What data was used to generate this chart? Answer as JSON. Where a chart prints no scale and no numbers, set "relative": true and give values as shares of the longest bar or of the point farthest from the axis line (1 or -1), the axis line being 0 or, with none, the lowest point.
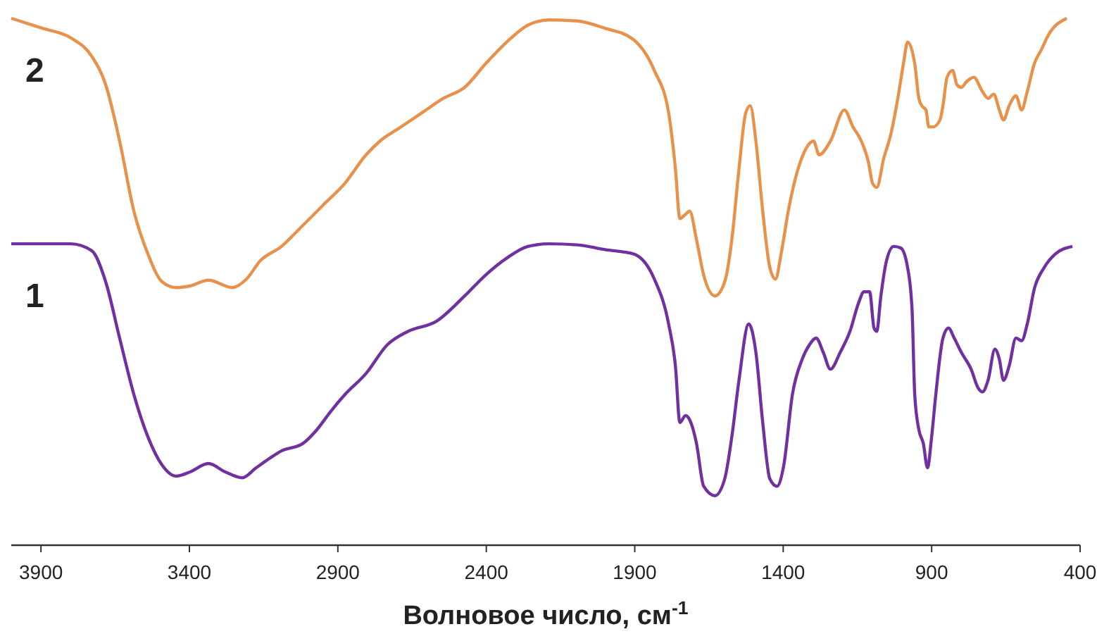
{
  "chart_data": {
    "type": "line",
    "relative": true,
    "xlabel": "Волновое число, см$^{-1}$",
    "xlim": [
      4000,
      400
    ],
    "xticks": [
      3900,
      3400,
      2900,
      2400,
      1900,
      1400,
      900,
      400
    ],
    "grid": false,
    "marker": "none",
    "line_style": "solid",
    "series": [
      {
        "name": "1",
        "color": "#7030a0",
        "x": [
          4000,
          3895,
          3800,
          3729,
          3682,
          3635,
          3587,
          3540,
          3492,
          3445,
          3398,
          3336,
          3279,
          3222,
          3175,
          3127,
          3090,
          3018,
          2971,
          2924,
          2876,
          2805,
          2734,
          2663,
          2568,
          2473,
          2402,
          2331,
          2260,
          2189,
          2094,
          2000,
          1905,
          1834,
          1786,
          1763,
          1748,
          1729,
          1715,
          1692,
          1668,
          1630,
          1597,
          1573,
          1549,
          1516,
          1492,
          1469,
          1445,
          1421,
          1398,
          1369,
          1336,
          1312,
          1289,
          1265,
          1241,
          1208,
          1175,
          1146,
          1128,
          1109,
          1094,
          1085,
          1071,
          1052,
          1028,
          1004,
          981,
          966,
          957,
          943,
          928,
          914,
          900,
          886,
          862,
          843,
          824,
          800,
          767,
          744,
          729,
          710,
          687,
          672,
          658,
          639,
          616,
          597,
          578,
          554,
          521,
          483,
          426
        ],
        "values": [
          0.572,
          0.572,
          0.572,
          0.559,
          0.5,
          0.393,
          0.286,
          0.206,
          0.152,
          0.131,
          0.139,
          0.155,
          0.139,
          0.128,
          0.147,
          0.166,
          0.179,
          0.193,
          0.219,
          0.254,
          0.286,
          0.326,
          0.38,
          0.406,
          0.425,
          0.473,
          0.513,
          0.545,
          0.567,
          0.572,
          0.57,
          0.561,
          0.553,
          0.505,
          0.42,
          0.34,
          0.233,
          0.246,
          0.238,
          0.193,
          0.112,
          0.094,
          0.126,
          0.206,
          0.313,
          0.42,
          0.366,
          0.233,
          0.126,
          0.112,
          0.152,
          0.286,
          0.353,
          0.38,
          0.393,
          0.366,
          0.334,
          0.366,
          0.406,
          0.46,
          0.481,
          0.481,
          0.412,
          0.406,
          0.473,
          0.54,
          0.567,
          0.564,
          0.527,
          0.447,
          0.286,
          0.219,
          0.193,
          0.147,
          0.206,
          0.286,
          0.393,
          0.412,
          0.393,
          0.366,
          0.334,
          0.299,
          0.291,
          0.313,
          0.372,
          0.353,
          0.313,
          0.34,
          0.393,
          0.388,
          0.42,
          0.487,
          0.527,
          0.553,
          0.567
        ]
      },
      {
        "name": "2",
        "color": "#e8914a",
        "x": [
          4000,
          3895,
          3800,
          3729,
          3682,
          3635,
          3587,
          3540,
          3492,
          3445,
          3398,
          3336,
          3255,
          3208,
          3161,
          3090,
          3018,
          2947,
          2876,
          2805,
          2758,
          2687,
          2616,
          2545,
          2473,
          2402,
          2331,
          2260,
          2189,
          2094,
          2000,
          1905,
          1834,
          1786,
          1763,
          1748,
          1729,
          1715,
          1692,
          1668,
          1630,
          1597,
          1573,
          1549,
          1526,
          1511,
          1492,
          1469,
          1445,
          1426,
          1407,
          1383,
          1350,
          1322,
          1298,
          1279,
          1241,
          1194,
          1165,
          1137,
          1113,
          1099,
          1085,
          1061,
          1037,
          1014,
          995,
          981,
          957,
          943,
          933,
          919,
          910,
          895,
          872,
          862,
          848,
          829,
          815,
          800,
          782,
          758,
          729,
          710,
          691,
          672,
          658,
          639,
          616,
          597,
          578,
          554,
          530,
          507,
          445
        ],
        "values": [
          1.0,
          0.981,
          0.963,
          0.928,
          0.874,
          0.767,
          0.634,
          0.553,
          0.5,
          0.489,
          0.492,
          0.503,
          0.489,
          0.505,
          0.54,
          0.567,
          0.607,
          0.647,
          0.687,
          0.741,
          0.767,
          0.794,
          0.821,
          0.848,
          0.869,
          0.914,
          0.955,
          0.987,
          0.997,
          0.995,
          0.981,
          0.96,
          0.901,
          0.821,
          0.714,
          0.62,
          0.628,
          0.634,
          0.58,
          0.513,
          0.473,
          0.5,
          0.58,
          0.714,
          0.821,
          0.834,
          0.767,
          0.634,
          0.527,
          0.505,
          0.553,
          0.634,
          0.714,
          0.754,
          0.767,
          0.741,
          0.767,
          0.826,
          0.794,
          0.767,
          0.727,
          0.687,
          0.679,
          0.735,
          0.781,
          0.848,
          0.914,
          0.955,
          0.914,
          0.848,
          0.834,
          0.826,
          0.794,
          0.794,
          0.807,
          0.834,
          0.888,
          0.901,
          0.874,
          0.869,
          0.88,
          0.888,
          0.861,
          0.848,
          0.856,
          0.826,
          0.807,
          0.834,
          0.853,
          0.826,
          0.861,
          0.914,
          0.941,
          0.968,
          1.0
        ]
      }
    ]
  }
}
